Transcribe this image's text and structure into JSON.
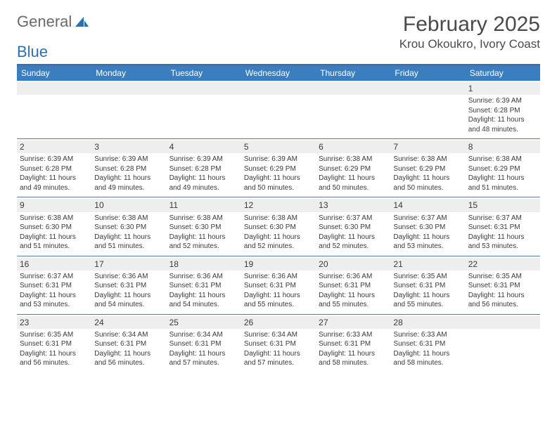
{
  "brand": {
    "word1": "General",
    "word2": "Blue",
    "logo_color": "#2f6fb0",
    "text_color": "#6a6a6a"
  },
  "title": {
    "month": "February 2025",
    "location": "Krou Okoukro, Ivory Coast"
  },
  "colors": {
    "header_bg": "#3a7ebf",
    "header_rule": "#2f6fb0",
    "week_divider": "#5a7a9a",
    "daynum_bg": "#eeeeee",
    "page_bg": "#ffffff",
    "text": "#3a3a3a"
  },
  "fonts": {
    "title_size_pt": 22,
    "location_size_pt": 13,
    "dayheader_size_pt": 9,
    "body_size_pt": 7.5
  },
  "day_names": [
    "Sunday",
    "Monday",
    "Tuesday",
    "Wednesday",
    "Thursday",
    "Friday",
    "Saturday"
  ],
  "labels": {
    "sunrise": "Sunrise:",
    "sunset": "Sunset:",
    "daylight": "Daylight:"
  },
  "weeks": [
    [
      {
        "n": "",
        "empty": true
      },
      {
        "n": "",
        "empty": true
      },
      {
        "n": "",
        "empty": true
      },
      {
        "n": "",
        "empty": true
      },
      {
        "n": "",
        "empty": true
      },
      {
        "n": "",
        "empty": true
      },
      {
        "n": "1",
        "sunrise": "6:39 AM",
        "sunset": "6:28 PM",
        "daylight": "11 hours and 48 minutes."
      }
    ],
    [
      {
        "n": "2",
        "sunrise": "6:39 AM",
        "sunset": "6:28 PM",
        "daylight": "11 hours and 49 minutes."
      },
      {
        "n": "3",
        "sunrise": "6:39 AM",
        "sunset": "6:28 PM",
        "daylight": "11 hours and 49 minutes."
      },
      {
        "n": "4",
        "sunrise": "6:39 AM",
        "sunset": "6:28 PM",
        "daylight": "11 hours and 49 minutes."
      },
      {
        "n": "5",
        "sunrise": "6:39 AM",
        "sunset": "6:29 PM",
        "daylight": "11 hours and 50 minutes."
      },
      {
        "n": "6",
        "sunrise": "6:38 AM",
        "sunset": "6:29 PM",
        "daylight": "11 hours and 50 minutes."
      },
      {
        "n": "7",
        "sunrise": "6:38 AM",
        "sunset": "6:29 PM",
        "daylight": "11 hours and 50 minutes."
      },
      {
        "n": "8",
        "sunrise": "6:38 AM",
        "sunset": "6:29 PM",
        "daylight": "11 hours and 51 minutes."
      }
    ],
    [
      {
        "n": "9",
        "sunrise": "6:38 AM",
        "sunset": "6:30 PM",
        "daylight": "11 hours and 51 minutes."
      },
      {
        "n": "10",
        "sunrise": "6:38 AM",
        "sunset": "6:30 PM",
        "daylight": "11 hours and 51 minutes."
      },
      {
        "n": "11",
        "sunrise": "6:38 AM",
        "sunset": "6:30 PM",
        "daylight": "11 hours and 52 minutes."
      },
      {
        "n": "12",
        "sunrise": "6:38 AM",
        "sunset": "6:30 PM",
        "daylight": "11 hours and 52 minutes."
      },
      {
        "n": "13",
        "sunrise": "6:37 AM",
        "sunset": "6:30 PM",
        "daylight": "11 hours and 52 minutes."
      },
      {
        "n": "14",
        "sunrise": "6:37 AM",
        "sunset": "6:30 PM",
        "daylight": "11 hours and 53 minutes."
      },
      {
        "n": "15",
        "sunrise": "6:37 AM",
        "sunset": "6:31 PM",
        "daylight": "11 hours and 53 minutes."
      }
    ],
    [
      {
        "n": "16",
        "sunrise": "6:37 AM",
        "sunset": "6:31 PM",
        "daylight": "11 hours and 53 minutes."
      },
      {
        "n": "17",
        "sunrise": "6:36 AM",
        "sunset": "6:31 PM",
        "daylight": "11 hours and 54 minutes."
      },
      {
        "n": "18",
        "sunrise": "6:36 AM",
        "sunset": "6:31 PM",
        "daylight": "11 hours and 54 minutes."
      },
      {
        "n": "19",
        "sunrise": "6:36 AM",
        "sunset": "6:31 PM",
        "daylight": "11 hours and 55 minutes."
      },
      {
        "n": "20",
        "sunrise": "6:36 AM",
        "sunset": "6:31 PM",
        "daylight": "11 hours and 55 minutes."
      },
      {
        "n": "21",
        "sunrise": "6:35 AM",
        "sunset": "6:31 PM",
        "daylight": "11 hours and 55 minutes."
      },
      {
        "n": "22",
        "sunrise": "6:35 AM",
        "sunset": "6:31 PM",
        "daylight": "11 hours and 56 minutes."
      }
    ],
    [
      {
        "n": "23",
        "sunrise": "6:35 AM",
        "sunset": "6:31 PM",
        "daylight": "11 hours and 56 minutes."
      },
      {
        "n": "24",
        "sunrise": "6:34 AM",
        "sunset": "6:31 PM",
        "daylight": "11 hours and 56 minutes."
      },
      {
        "n": "25",
        "sunrise": "6:34 AM",
        "sunset": "6:31 PM",
        "daylight": "11 hours and 57 minutes."
      },
      {
        "n": "26",
        "sunrise": "6:34 AM",
        "sunset": "6:31 PM",
        "daylight": "11 hours and 57 minutes."
      },
      {
        "n": "27",
        "sunrise": "6:33 AM",
        "sunset": "6:31 PM",
        "daylight": "11 hours and 58 minutes."
      },
      {
        "n": "28",
        "sunrise": "6:33 AM",
        "sunset": "6:31 PM",
        "daylight": "11 hours and 58 minutes."
      },
      {
        "n": "",
        "empty": true
      }
    ]
  ]
}
